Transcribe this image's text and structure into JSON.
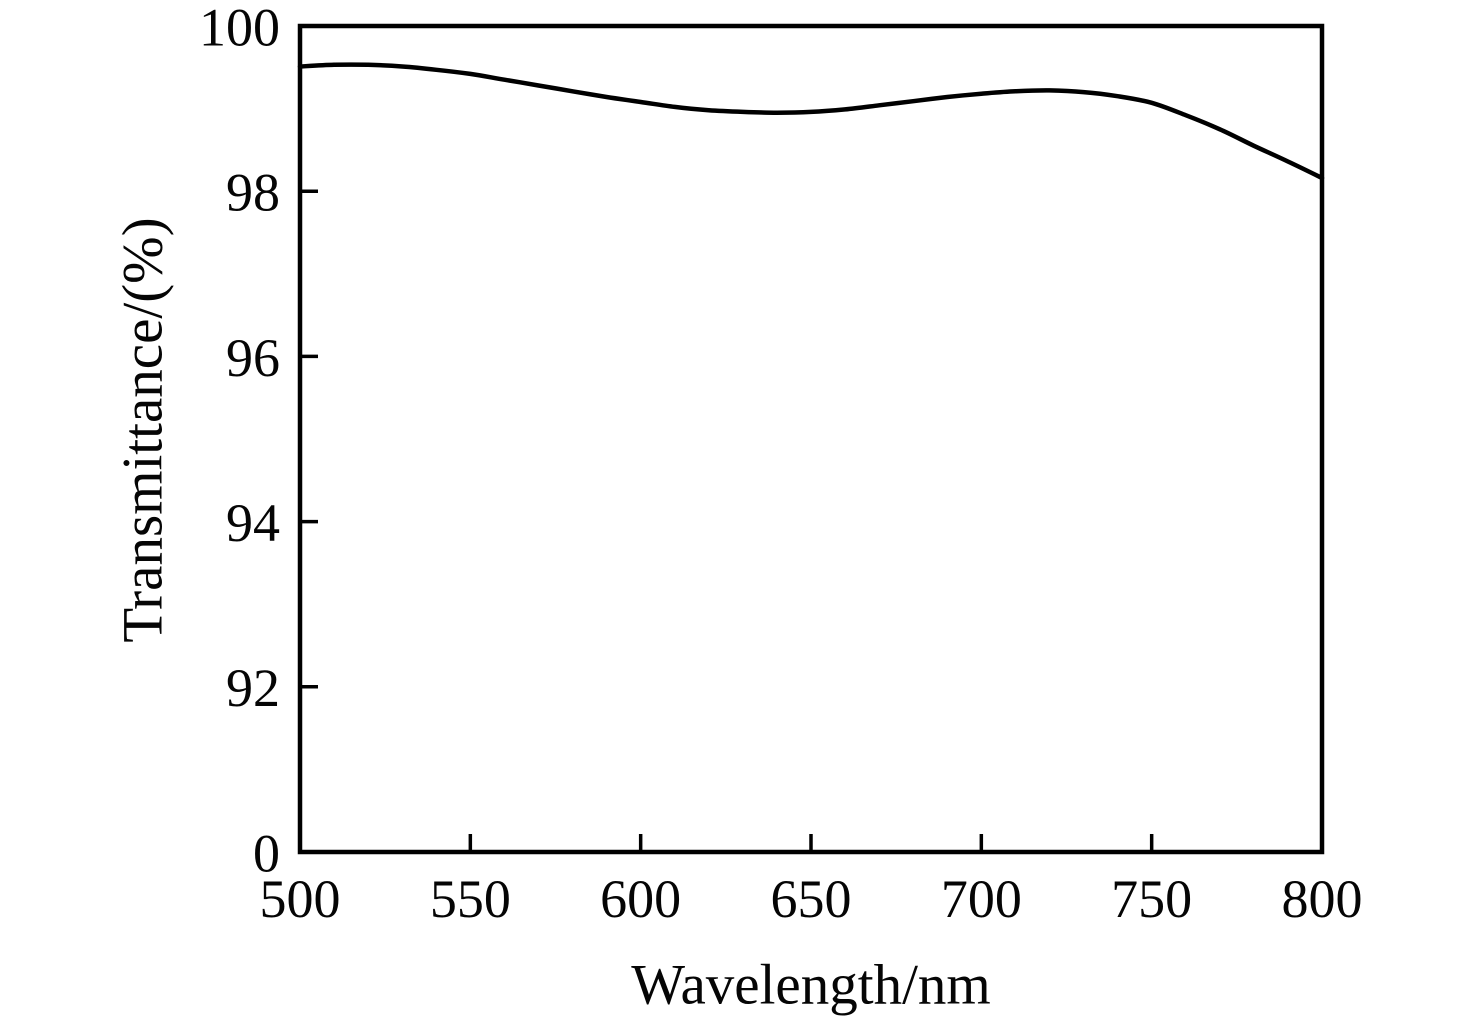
{
  "chart_data": {
    "type": "line",
    "title": "",
    "xlabel": "Wavelength/nm",
    "ylabel": "Transmittance/(%)",
    "xlim": [
      500,
      800
    ],
    "ylim_display": [
      90,
      100
    ],
    "grid": false,
    "legend": null,
    "axis_note": "y-axis is broken: bottom tick labeled 0 sits at the 90 position, scale then runs 92-100",
    "frame": "full box, ticks pointing inward on left and bottom only",
    "line_color": "#000000",
    "x_ticks": [
      {
        "label": "500",
        "value": 500
      },
      {
        "label": "550",
        "value": 550
      },
      {
        "label": "600",
        "value": 600
      },
      {
        "label": "650",
        "value": 650
      },
      {
        "label": "700",
        "value": 700
      },
      {
        "label": "750",
        "value": 750
      },
      {
        "label": "800",
        "value": 800
      }
    ],
    "y_ticks": [
      {
        "label": "0",
        "value": 90
      },
      {
        "label": "92",
        "value": 92
      },
      {
        "label": "94",
        "value": 94
      },
      {
        "label": "96",
        "value": 96
      },
      {
        "label": "98",
        "value": 98
      },
      {
        "label": "100",
        "value": 100
      }
    ],
    "series": [
      {
        "name": "Transmittance",
        "color": "#000000",
        "x": [
          500,
          510,
          520,
          530,
          540,
          550,
          560,
          570,
          580,
          590,
          600,
          610,
          620,
          630,
          640,
          650,
          660,
          670,
          680,
          690,
          700,
          710,
          720,
          730,
          740,
          750,
          760,
          770,
          780,
          790,
          800
        ],
        "y": [
          99.51,
          99.53,
          99.53,
          99.51,
          99.47,
          99.42,
          99.35,
          99.28,
          99.21,
          99.14,
          99.08,
          99.02,
          98.98,
          98.96,
          98.95,
          98.96,
          98.99,
          99.04,
          99.09,
          99.14,
          99.18,
          99.21,
          99.22,
          99.2,
          99.15,
          99.07,
          98.92,
          98.75,
          98.55,
          98.36,
          98.16
        ]
      }
    ]
  }
}
